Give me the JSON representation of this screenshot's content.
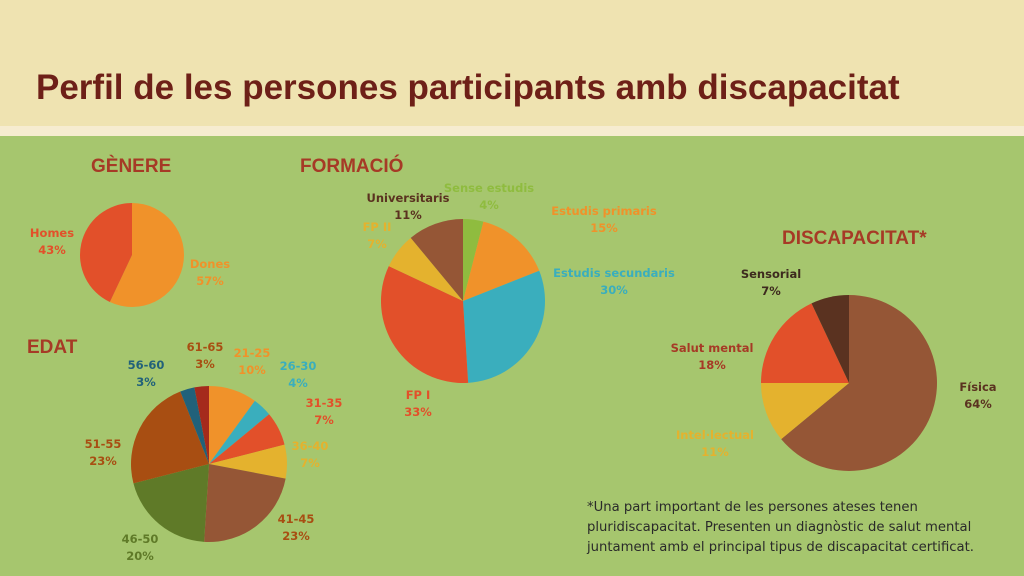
{
  "title": "Perfil de les persones participants amb discapacitat",
  "sections": {
    "genere": "GÈNERE",
    "formacio": "FORMACIÓ",
    "edat": "EDAT",
    "discapacitat": "DISCAPACITAT*"
  },
  "note": "*Una part important de les persones ateses tenen pluridiscapacitat. Presenten un diagnòstic de salut mental juntament amb el principal tipus de discapacitat certificat.",
  "chart_data": [
    {
      "type": "pie",
      "title": "GÈNERE",
      "slices": [
        {
          "label": "Dones",
          "value": 57,
          "display": "57%",
          "color": "#f0922a"
        },
        {
          "label": "Homes",
          "value": 43,
          "display": "43%",
          "color": "#e2502a"
        }
      ]
    },
    {
      "type": "pie",
      "title": "FORMACIÓ",
      "slices": [
        {
          "label": "Sense estudis",
          "value": 4,
          "display": "4%",
          "color": "#8fbc3f"
        },
        {
          "label": "Estudis primaris",
          "value": 15,
          "display": "15%",
          "color": "#f0922a"
        },
        {
          "label": "Estudis secundaris",
          "value": 30,
          "display": "30%",
          "color": "#3aaebd"
        },
        {
          "label": "FP I",
          "value": 33,
          "display": "33%",
          "color": "#e2502a"
        },
        {
          "label": "FP II",
          "value": 7,
          "display": "7%",
          "color": "#e4b22e"
        },
        {
          "label": "Universitaris",
          "value": 11,
          "display": "11%",
          "color": "#955636"
        }
      ]
    },
    {
      "type": "pie",
      "title": "EDAT",
      "slices": [
        {
          "label": "21-25",
          "value": 10,
          "display": "10%",
          "color": "#f0922a"
        },
        {
          "label": "26-30",
          "value": 4,
          "display": "4%",
          "color": "#3aaebd"
        },
        {
          "label": "31-35",
          "value": 7,
          "display": "7%",
          "color": "#e2502a"
        },
        {
          "label": "36-40",
          "value": 7,
          "display": "7%",
          "color": "#e4b22e"
        },
        {
          "label": "41-45",
          "value": 23,
          "display": "23%",
          "color": "#955636"
        },
        {
          "label": "46-50",
          "value": 20,
          "display": "20%",
          "color": "#5f7a28"
        },
        {
          "label": "51-55",
          "value": 23,
          "display": "23%",
          "color": "#a84e12"
        },
        {
          "label": "56-60",
          "value": 3,
          "display": "3%",
          "color": "#21617a"
        },
        {
          "label": "61-65",
          "value": 3,
          "display": "3%",
          "color": "#a52a1c"
        }
      ]
    },
    {
      "type": "pie",
      "title": "DISCAPACITAT*",
      "slices": [
        {
          "label": "Física",
          "value": 64,
          "display": "64%",
          "color": "#955636"
        },
        {
          "label": "Intel·lectual",
          "value": 11,
          "display": "11%",
          "color": "#e4b22e"
        },
        {
          "label": "Salut mental",
          "value": 18,
          "display": "18%",
          "color": "#e2502a"
        },
        {
          "label": "Sensorial",
          "value": 7,
          "display": "7%",
          "color": "#5a3220"
        }
      ]
    }
  ]
}
